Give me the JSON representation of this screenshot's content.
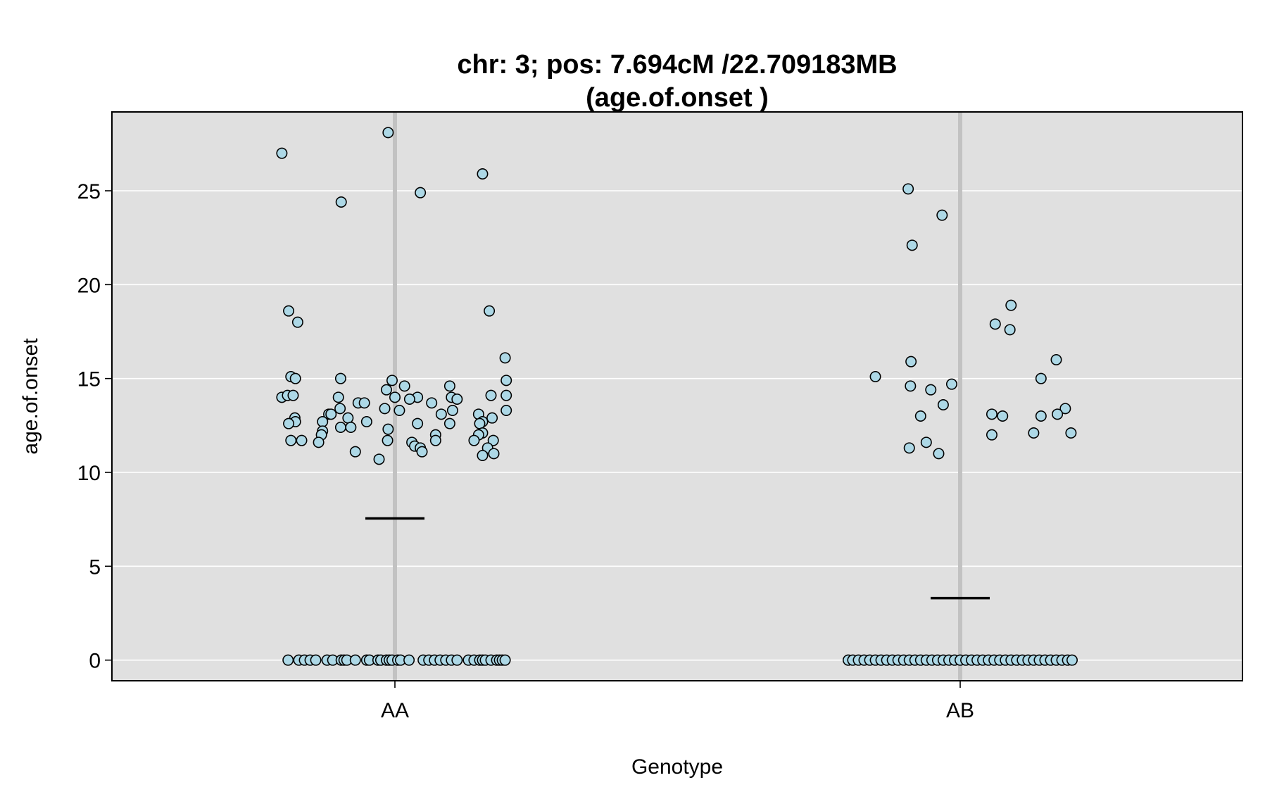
{
  "chart_data": {
    "type": "scatter",
    "title_line1": "chr: 3; pos: 7.694cM /22.709183MB",
    "title_line2": "(age.of.onset )",
    "xlabel": "Genotype",
    "ylabel": "age.of.onset",
    "categories": [
      "AA",
      "AB"
    ],
    "ylim": [
      -1.1,
      29.2
    ],
    "yticks": [
      0,
      5,
      10,
      15,
      20,
      25
    ],
    "grid": true,
    "panel_color": "#e0e0e0",
    "point_color": "#add8e6",
    "series": [
      {
        "category": "AA",
        "mean": 7.55,
        "points": [
          {
            "dx": -0.2,
            "y": 27.0
          },
          {
            "dx": -0.012,
            "y": 28.1
          },
          {
            "dx": 0.155,
            "y": 25.9
          },
          {
            "dx": -0.095,
            "y": 24.4
          },
          {
            "dx": 0.045,
            "y": 24.9
          },
          {
            "dx": -0.188,
            "y": 18.6
          },
          {
            "dx": -0.172,
            "y": 18.0
          },
          {
            "dx": 0.167,
            "y": 18.6
          },
          {
            "dx": 0.195,
            "y": 16.1
          },
          {
            "dx": -0.2,
            "y": 14.0
          },
          {
            "dx": -0.19,
            "y": 14.1
          },
          {
            "dx": -0.18,
            "y": 14.1
          },
          {
            "dx": -0.184,
            "y": 15.1
          },
          {
            "dx": -0.176,
            "y": 15.0
          },
          {
            "dx": -0.096,
            "y": 15.0
          },
          {
            "dx": -0.005,
            "y": 14.9
          },
          {
            "dx": -0.015,
            "y": 14.4
          },
          {
            "dx": 0.017,
            "y": 14.6
          },
          {
            "dx": 0.097,
            "y": 14.6
          },
          {
            "dx": 0.197,
            "y": 14.9
          },
          {
            "dx": 0.197,
            "y": 14.1
          },
          {
            "dx": 0.17,
            "y": 14.1
          },
          {
            "dx": -0.1,
            "y": 14.0
          },
          {
            "dx": 0.0,
            "y": 14.0
          },
          {
            "dx": 0.04,
            "y": 14.0
          },
          {
            "dx": 0.1,
            "y": 14.0
          },
          {
            "dx": 0.11,
            "y": 13.9
          },
          {
            "dx": 0.026,
            "y": 13.9
          },
          {
            "dx": -0.065,
            "y": 13.7
          },
          {
            "dx": -0.054,
            "y": 13.7
          },
          {
            "dx": 0.065,
            "y": 13.7
          },
          {
            "dx": -0.097,
            "y": 13.4
          },
          {
            "dx": -0.018,
            "y": 13.4
          },
          {
            "dx": 0.008,
            "y": 13.3
          },
          {
            "dx": 0.102,
            "y": 13.3
          },
          {
            "dx": 0.197,
            "y": 13.3
          },
          {
            "dx": -0.117,
            "y": 13.1
          },
          {
            "dx": -0.113,
            "y": 13.1
          },
          {
            "dx": 0.082,
            "y": 13.1
          },
          {
            "dx": 0.148,
            "y": 13.1
          },
          {
            "dx": -0.177,
            "y": 12.9
          },
          {
            "dx": -0.083,
            "y": 12.9
          },
          {
            "dx": 0.172,
            "y": 12.9
          },
          {
            "dx": -0.176,
            "y": 12.7
          },
          {
            "dx": -0.128,
            "y": 12.7
          },
          {
            "dx": -0.05,
            "y": 12.7
          },
          {
            "dx": 0.155,
            "y": 12.7
          },
          {
            "dx": -0.188,
            "y": 12.6
          },
          {
            "dx": 0.04,
            "y": 12.6
          },
          {
            "dx": 0.097,
            "y": 12.6
          },
          {
            "dx": 0.15,
            "y": 12.6
          },
          {
            "dx": -0.096,
            "y": 12.4
          },
          {
            "dx": -0.078,
            "y": 12.4
          },
          {
            "dx": -0.128,
            "y": 12.2
          },
          {
            "dx": -0.012,
            "y": 12.3
          },
          {
            "dx": 0.072,
            "y": 12.0
          },
          {
            "dx": 0.155,
            "y": 12.1
          },
          {
            "dx": -0.13,
            "y": 12.0
          },
          {
            "dx": 0.148,
            "y": 12.0
          },
          {
            "dx": -0.184,
            "y": 11.7
          },
          {
            "dx": -0.165,
            "y": 11.7
          },
          {
            "dx": -0.135,
            "y": 11.6
          },
          {
            "dx": -0.013,
            "y": 11.7
          },
          {
            "dx": 0.03,
            "y": 11.6
          },
          {
            "dx": 0.072,
            "y": 11.7
          },
          {
            "dx": 0.14,
            "y": 11.7
          },
          {
            "dx": 0.174,
            "y": 11.7
          },
          {
            "dx": 0.035,
            "y": 11.4
          },
          {
            "dx": 0.045,
            "y": 11.3
          },
          {
            "dx": 0.164,
            "y": 11.3
          },
          {
            "dx": -0.07,
            "y": 11.1
          },
          {
            "dx": 0.048,
            "y": 11.1
          },
          {
            "dx": 0.155,
            "y": 10.9
          },
          {
            "dx": 0.175,
            "y": 11.0
          },
          {
            "dx": -0.028,
            "y": 10.7
          },
          {
            "dx": -0.189,
            "y": 0
          },
          {
            "dx": -0.17,
            "y": 0
          },
          {
            "dx": -0.16,
            "y": 0
          },
          {
            "dx": -0.15,
            "y": 0
          },
          {
            "dx": -0.14,
            "y": 0
          },
          {
            "dx": -0.12,
            "y": 0
          },
          {
            "dx": -0.11,
            "y": 0
          },
          {
            "dx": -0.095,
            "y": 0
          },
          {
            "dx": -0.09,
            "y": 0
          },
          {
            "dx": -0.085,
            "y": 0
          },
          {
            "dx": -0.07,
            "y": 0
          },
          {
            "dx": -0.05,
            "y": 0
          },
          {
            "dx": -0.045,
            "y": 0
          },
          {
            "dx": -0.03,
            "y": 0
          },
          {
            "dx": -0.025,
            "y": 0
          },
          {
            "dx": -0.015,
            "y": 0
          },
          {
            "dx": -0.01,
            "y": 0
          },
          {
            "dx": -0.005,
            "y": 0
          },
          {
            "dx": 0.005,
            "y": 0
          },
          {
            "dx": 0.01,
            "y": 0
          },
          {
            "dx": 0.025,
            "y": 0
          },
          {
            "dx": 0.05,
            "y": 0
          },
          {
            "dx": 0.06,
            "y": 0
          },
          {
            "dx": 0.07,
            "y": 0
          },
          {
            "dx": 0.08,
            "y": 0
          },
          {
            "dx": 0.09,
            "y": 0
          },
          {
            "dx": 0.1,
            "y": 0
          },
          {
            "dx": 0.11,
            "y": 0
          },
          {
            "dx": 0.13,
            "y": 0
          },
          {
            "dx": 0.14,
            "y": 0
          },
          {
            "dx": 0.15,
            "y": 0
          },
          {
            "dx": 0.155,
            "y": 0
          },
          {
            "dx": 0.16,
            "y": 0
          },
          {
            "dx": 0.17,
            "y": 0
          },
          {
            "dx": 0.18,
            "y": 0
          },
          {
            "dx": 0.185,
            "y": 0
          },
          {
            "dx": 0.19,
            "y": 0
          },
          {
            "dx": 0.195,
            "y": 0
          }
        ]
      },
      {
        "category": "AB",
        "mean": 3.3,
        "points": [
          {
            "dx": -0.092,
            "y": 25.1
          },
          {
            "dx": -0.032,
            "y": 23.7
          },
          {
            "dx": -0.085,
            "y": 22.1
          },
          {
            "dx": 0.09,
            "y": 18.9
          },
          {
            "dx": 0.062,
            "y": 17.9
          },
          {
            "dx": 0.088,
            "y": 17.6
          },
          {
            "dx": -0.087,
            "y": 15.9
          },
          {
            "dx": 0.17,
            "y": 16.0
          },
          {
            "dx": -0.15,
            "y": 15.1
          },
          {
            "dx": 0.143,
            "y": 15.0
          },
          {
            "dx": -0.088,
            "y": 14.6
          },
          {
            "dx": -0.015,
            "y": 14.7
          },
          {
            "dx": -0.052,
            "y": 14.4
          },
          {
            "dx": -0.03,
            "y": 13.6
          },
          {
            "dx": 0.186,
            "y": 13.4
          },
          {
            "dx": 0.172,
            "y": 13.1
          },
          {
            "dx": 0.056,
            "y": 13.1
          },
          {
            "dx": 0.075,
            "y": 13.0
          },
          {
            "dx": 0.143,
            "y": 13.0
          },
          {
            "dx": -0.07,
            "y": 13.0
          },
          {
            "dx": 0.13,
            "y": 12.1
          },
          {
            "dx": 0.196,
            "y": 12.1
          },
          {
            "dx": 0.056,
            "y": 12.0
          },
          {
            "dx": -0.06,
            "y": 11.6
          },
          {
            "dx": -0.09,
            "y": 11.3
          },
          {
            "dx": -0.038,
            "y": 11.0
          },
          {
            "dx": -0.198,
            "y": 0
          },
          {
            "dx": -0.19,
            "y": 0
          },
          {
            "dx": -0.18,
            "y": 0
          },
          {
            "dx": -0.17,
            "y": 0
          },
          {
            "dx": -0.16,
            "y": 0
          },
          {
            "dx": -0.15,
            "y": 0
          },
          {
            "dx": -0.14,
            "y": 0
          },
          {
            "dx": -0.13,
            "y": 0
          },
          {
            "dx": -0.12,
            "y": 0
          },
          {
            "dx": -0.11,
            "y": 0
          },
          {
            "dx": -0.1,
            "y": 0
          },
          {
            "dx": -0.09,
            "y": 0
          },
          {
            "dx": -0.08,
            "y": 0
          },
          {
            "dx": -0.07,
            "y": 0
          },
          {
            "dx": -0.06,
            "y": 0
          },
          {
            "dx": -0.05,
            "y": 0
          },
          {
            "dx": -0.04,
            "y": 0
          },
          {
            "dx": -0.03,
            "y": 0
          },
          {
            "dx": -0.02,
            "y": 0
          },
          {
            "dx": -0.01,
            "y": 0
          },
          {
            "dx": 0.0,
            "y": 0
          },
          {
            "dx": 0.01,
            "y": 0
          },
          {
            "dx": 0.02,
            "y": 0
          },
          {
            "dx": 0.03,
            "y": 0
          },
          {
            "dx": 0.04,
            "y": 0
          },
          {
            "dx": 0.05,
            "y": 0
          },
          {
            "dx": 0.06,
            "y": 0
          },
          {
            "dx": 0.07,
            "y": 0
          },
          {
            "dx": 0.08,
            "y": 0
          },
          {
            "dx": 0.09,
            "y": 0
          },
          {
            "dx": 0.1,
            "y": 0
          },
          {
            "dx": 0.11,
            "y": 0
          },
          {
            "dx": 0.12,
            "y": 0
          },
          {
            "dx": 0.13,
            "y": 0
          },
          {
            "dx": 0.14,
            "y": 0
          },
          {
            "dx": 0.15,
            "y": 0
          },
          {
            "dx": 0.16,
            "y": 0
          },
          {
            "dx": 0.17,
            "y": 0
          },
          {
            "dx": 0.18,
            "y": 0
          },
          {
            "dx": 0.19,
            "y": 0
          },
          {
            "dx": 0.198,
            "y": 0
          }
        ]
      }
    ]
  }
}
